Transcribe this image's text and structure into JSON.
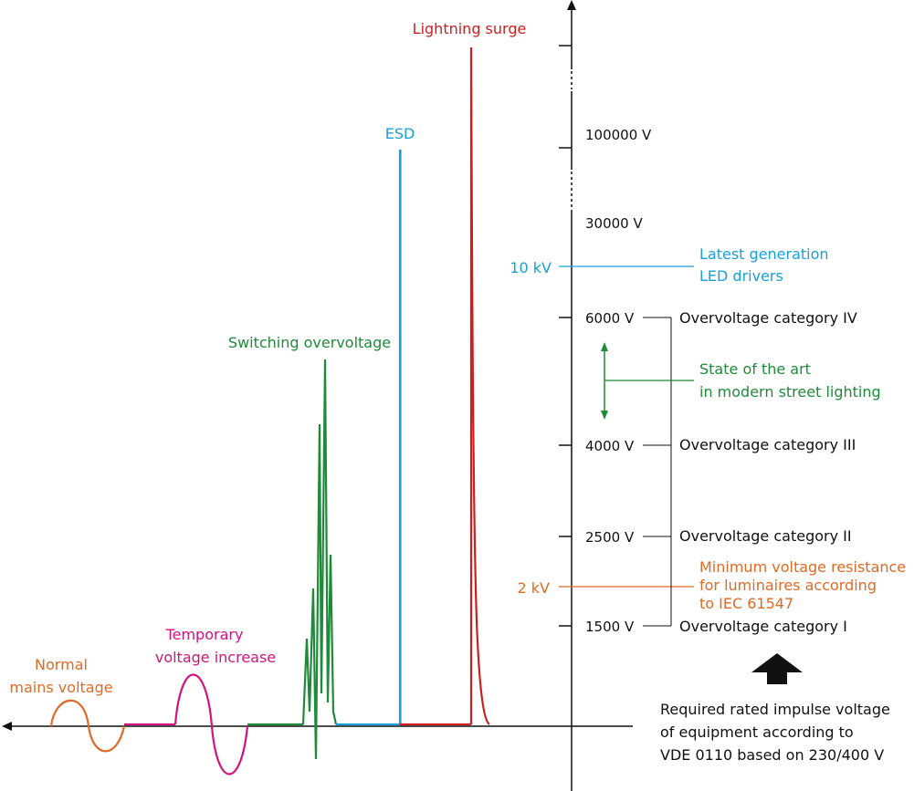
{
  "colors": {
    "normal": "#e06a25",
    "temporary": "#d0157f",
    "switching": "#1f8a3a",
    "esd": "#1aa0d8",
    "lightning": "#cc1f1f",
    "axis": "#111111",
    "text": "#111111"
  },
  "waveform_labels": {
    "normal": [
      "Normal",
      "mains voltage"
    ],
    "temporary": [
      "Temporary",
      "voltage increase"
    ],
    "switching": "Switching overvoltage",
    "esd": "ESD",
    "lightning": "Lightning surge"
  },
  "axis_ticks": {
    "v100000": "100000 V",
    "v30000": "30000 V",
    "v6000": "6000 V",
    "v4000": "4000 V",
    "v2500": "2500 V",
    "v1500": "1500 V"
  },
  "markers": {
    "led_value": "10 kV",
    "led_label": [
      "Latest generation",
      "LED drivers"
    ],
    "iec_value": "2 kV",
    "iec_label": [
      "Minimum voltage resistance",
      "for luminaires according",
      "to IEC 61547"
    ]
  },
  "categories": {
    "cat4": "Overvoltage category IV",
    "cat3": "Overvoltage category III",
    "cat2": "Overvoltage category II",
    "cat1": "Overvoltage category I"
  },
  "state_of_art": [
    "State of the art",
    "in modern street lighting"
  ],
  "footnote": [
    "Required rated impulse voltage",
    "of equipment according to",
    "VDE 0110 based on 230/400 V"
  ]
}
